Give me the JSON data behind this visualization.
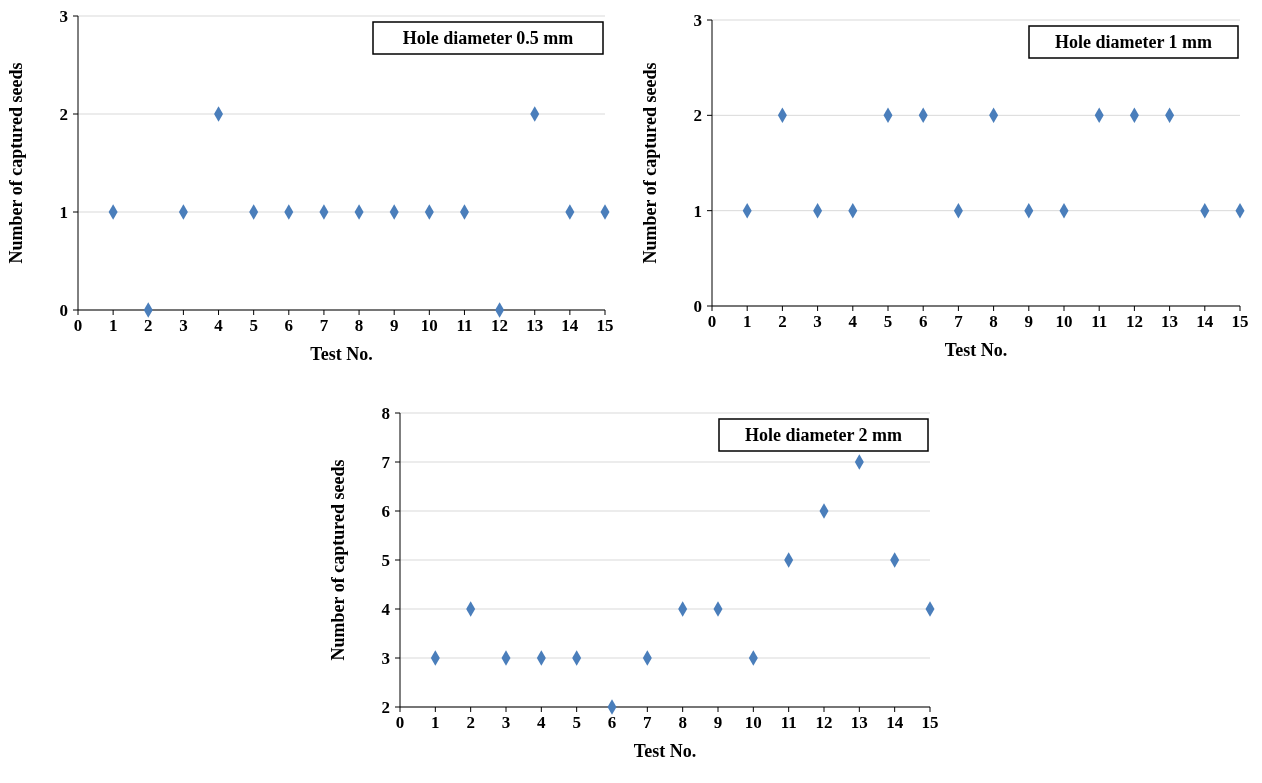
{
  "chart_data": [
    {
      "type": "scatter",
      "title": "Hole diameter 0.5 mm",
      "xlabel": "Test No.",
      "ylabel": "Number of captured seeds",
      "x": [
        1,
        2,
        3,
        4,
        5,
        6,
        7,
        8,
        9,
        10,
        11,
        12,
        13,
        14,
        15
      ],
      "series": [
        {
          "color": "#4a7ebb",
          "values": [
            1,
            0,
            1,
            2,
            1,
            1,
            1,
            1,
            1,
            1,
            1,
            0,
            2,
            1,
            1
          ]
        }
      ],
      "xlim": [
        0,
        15
      ],
      "xticks": [
        0,
        1,
        2,
        3,
        4,
        5,
        6,
        7,
        8,
        9,
        10,
        11,
        12,
        13,
        14,
        15
      ],
      "ylim": [
        0,
        3
      ],
      "yticks": [
        0,
        1,
        2,
        3
      ],
      "grid": "y",
      "marker": "diamond"
    },
    {
      "type": "scatter",
      "title": "Hole diameter 1 mm",
      "xlabel": "Test No.",
      "ylabel": "Number of captured seeds",
      "x": [
        1,
        2,
        3,
        4,
        5,
        6,
        7,
        8,
        9,
        10,
        11,
        12,
        13,
        14,
        15
      ],
      "series": [
        {
          "color": "#4a7ebb",
          "values": [
            1,
            2,
            1,
            1,
            2,
            2,
            1,
            2,
            1,
            1,
            2,
            2,
            2,
            1,
            1
          ]
        }
      ],
      "xlim": [
        0,
        15
      ],
      "xticks": [
        0,
        1,
        2,
        3,
        4,
        5,
        6,
        7,
        8,
        9,
        10,
        11,
        12,
        13,
        14,
        15
      ],
      "ylim": [
        0,
        3
      ],
      "yticks": [
        0,
        1,
        2,
        3
      ],
      "grid": "y",
      "marker": "diamond"
    },
    {
      "type": "scatter",
      "title": "Hole diameter 2 mm",
      "xlabel": "Test No.",
      "ylabel": "Number of captured seeds",
      "x": [
        1,
        2,
        3,
        4,
        5,
        6,
        7,
        8,
        9,
        10,
        11,
        12,
        13,
        14,
        15
      ],
      "series": [
        {
          "color": "#4a7ebb",
          "values": [
            3,
            4,
            3,
            3,
            3,
            2,
            3,
            4,
            4,
            3,
            5,
            6,
            7,
            5,
            4
          ]
        }
      ],
      "xlim": [
        0,
        15
      ],
      "xticks": [
        0,
        1,
        2,
        3,
        4,
        5,
        6,
        7,
        8,
        9,
        10,
        11,
        12,
        13,
        14,
        15
      ],
      "ylim": [
        2,
        8
      ],
      "yticks": [
        2,
        3,
        4,
        5,
        6,
        7,
        8
      ],
      "grid": "y",
      "marker": "diamond"
    }
  ]
}
